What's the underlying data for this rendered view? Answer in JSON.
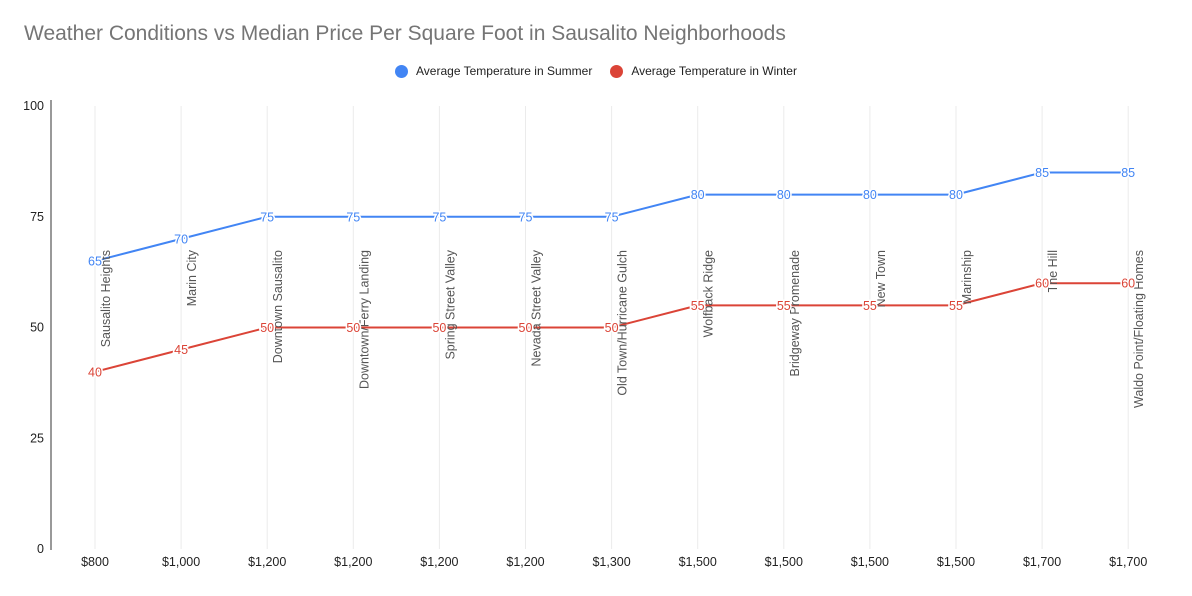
{
  "chart_data": {
    "type": "line",
    "title": "Weather Conditions vs Median Price Per Square Foot in Sausalito Neighborhoods",
    "x": [
      "$800",
      "$1,000",
      "$1,200",
      "$1,200",
      "$1,200",
      "$1,200",
      "$1,300",
      "$1,500",
      "$1,500",
      "$1,500",
      "$1,500",
      "$1,700",
      "$1,700"
    ],
    "neighborhoods": [
      "Sausalito Heights",
      "Marin City",
      "Downtown Sausalito",
      "Downtown/Ferry Landing",
      "Spring Street Valley",
      "Nevada Street Valley",
      "Old Town/Hurricane Gulch",
      "Wolfback Ridge",
      "Bridgeway Promenade",
      "New Town",
      "Marinship",
      "The Hill",
      "Waldo Point/Floating Homes"
    ],
    "series": [
      {
        "name": "Average Temperature in Summer",
        "color": "#4285f4",
        "values": [
          65,
          70,
          75,
          75,
          75,
          75,
          75,
          80,
          80,
          80,
          80,
          85,
          85
        ]
      },
      {
        "name": "Average Temperature in Winter",
        "color": "#db4437",
        "values": [
          40,
          45,
          50,
          50,
          50,
          50,
          50,
          55,
          55,
          55,
          55,
          60,
          60
        ]
      }
    ],
    "y_ticks": [
      "0",
      "25",
      "50",
      "75",
      "100"
    ],
    "ylim": [
      0,
      100
    ],
    "grid": "vertical",
    "legend_position": "top"
  }
}
